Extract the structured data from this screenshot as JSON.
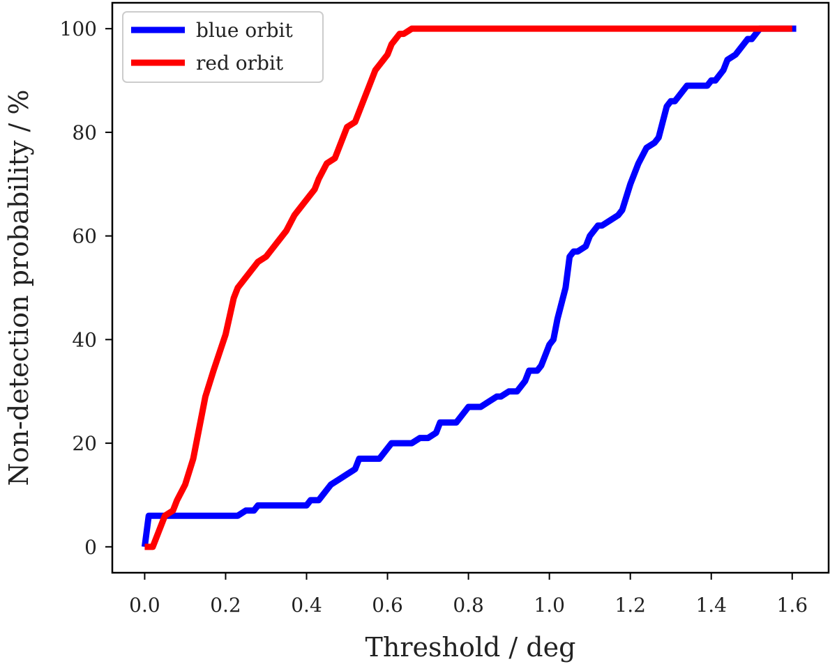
{
  "chart_data": {
    "type": "line",
    "title": "",
    "xlabel": "Threshold / deg",
    "ylabel": "Non-detection probability / %",
    "xlim": [
      -0.08,
      1.69
    ],
    "ylim": [
      -5,
      105
    ],
    "xticks": [
      0.0,
      0.2,
      0.4,
      0.6,
      0.8,
      1.0,
      1.2,
      1.4,
      1.6
    ],
    "xtick_labels": [
      "0.0",
      "0.2",
      "0.4",
      "0.6",
      "0.8",
      "1.0",
      "1.2",
      "1.4",
      "1.6"
    ],
    "yticks": [
      0,
      20,
      40,
      60,
      80,
      100
    ],
    "ytick_labels": [
      "0",
      "20",
      "40",
      "60",
      "80",
      "100"
    ],
    "grid": false,
    "legend_position": "top-left",
    "series": [
      {
        "name": "blue orbit",
        "color": "#0000ff",
        "x": [
          0.0,
          0.01,
          0.02,
          0.05,
          0.1,
          0.15,
          0.2,
          0.22,
          0.23,
          0.25,
          0.27,
          0.28,
          0.3,
          0.35,
          0.38,
          0.39,
          0.4,
          0.41,
          0.43,
          0.44,
          0.45,
          0.46,
          0.48,
          0.5,
          0.52,
          0.53,
          0.55,
          0.57,
          0.58,
          0.6,
          0.61,
          0.63,
          0.65,
          0.66,
          0.68,
          0.7,
          0.72,
          0.73,
          0.75,
          0.77,
          0.79,
          0.8,
          0.83,
          0.85,
          0.87,
          0.88,
          0.9,
          0.92,
          0.94,
          0.95,
          0.97,
          0.98,
          1.0,
          1.01,
          1.02,
          1.04,
          1.05,
          1.06,
          1.07,
          1.09,
          1.1,
          1.12,
          1.13,
          1.15,
          1.17,
          1.18,
          1.2,
          1.22,
          1.24,
          1.26,
          1.27,
          1.28,
          1.29,
          1.3,
          1.31,
          1.32,
          1.34,
          1.35,
          1.37,
          1.38,
          1.39,
          1.4,
          1.41,
          1.43,
          1.44,
          1.46,
          1.47,
          1.48,
          1.49,
          1.5,
          1.51,
          1.52,
          1.61
        ],
        "y": [
          0,
          6,
          6,
          6,
          6,
          6,
          6,
          6,
          6,
          7,
          7,
          8,
          8,
          8,
          8,
          8,
          8,
          9,
          9,
          10,
          11,
          12,
          13,
          14,
          15,
          17,
          17,
          17,
          17,
          19,
          20,
          20,
          20,
          20,
          21,
          21,
          22,
          24,
          24,
          24,
          26,
          27,
          27,
          28,
          29,
          29,
          30,
          30,
          32,
          34,
          34,
          35,
          39,
          40,
          44,
          50,
          56,
          57,
          57,
          58,
          60,
          62,
          62,
          63,
          64,
          65,
          70,
          74,
          77,
          78,
          79,
          82,
          85,
          86,
          86,
          87,
          89,
          89,
          89,
          89,
          89,
          90,
          90,
          92,
          94,
          95,
          96,
          97,
          98,
          98,
          99,
          100,
          100
        ]
      },
      {
        "name": "red orbit",
        "color": "#ff0000",
        "x": [
          0.0,
          0.02,
          0.04,
          0.05,
          0.07,
          0.08,
          0.1,
          0.12,
          0.13,
          0.15,
          0.17,
          0.2,
          0.22,
          0.23,
          0.25,
          0.27,
          0.28,
          0.3,
          0.32,
          0.33,
          0.35,
          0.37,
          0.38,
          0.4,
          0.42,
          0.43,
          0.45,
          0.47,
          0.48,
          0.5,
          0.52,
          0.53,
          0.55,
          0.57,
          0.58,
          0.59,
          0.6,
          0.61,
          0.62,
          0.63,
          0.64,
          0.65,
          0.66,
          0.67,
          0.68,
          0.7,
          0.8,
          1.0,
          1.2,
          1.4,
          1.6
        ],
        "y": [
          0,
          0,
          4,
          6,
          7,
          9,
          12,
          17,
          21,
          29,
          34,
          41,
          48,
          50,
          52,
          54,
          55,
          56,
          58,
          59,
          61,
          64,
          65,
          67,
          69,
          71,
          74,
          75,
          77,
          81,
          82,
          84,
          88,
          92,
          93,
          94,
          95,
          97,
          98,
          99,
          99,
          99.5,
          100,
          100,
          100,
          100,
          100,
          100,
          100,
          100,
          100
        ]
      }
    ]
  }
}
